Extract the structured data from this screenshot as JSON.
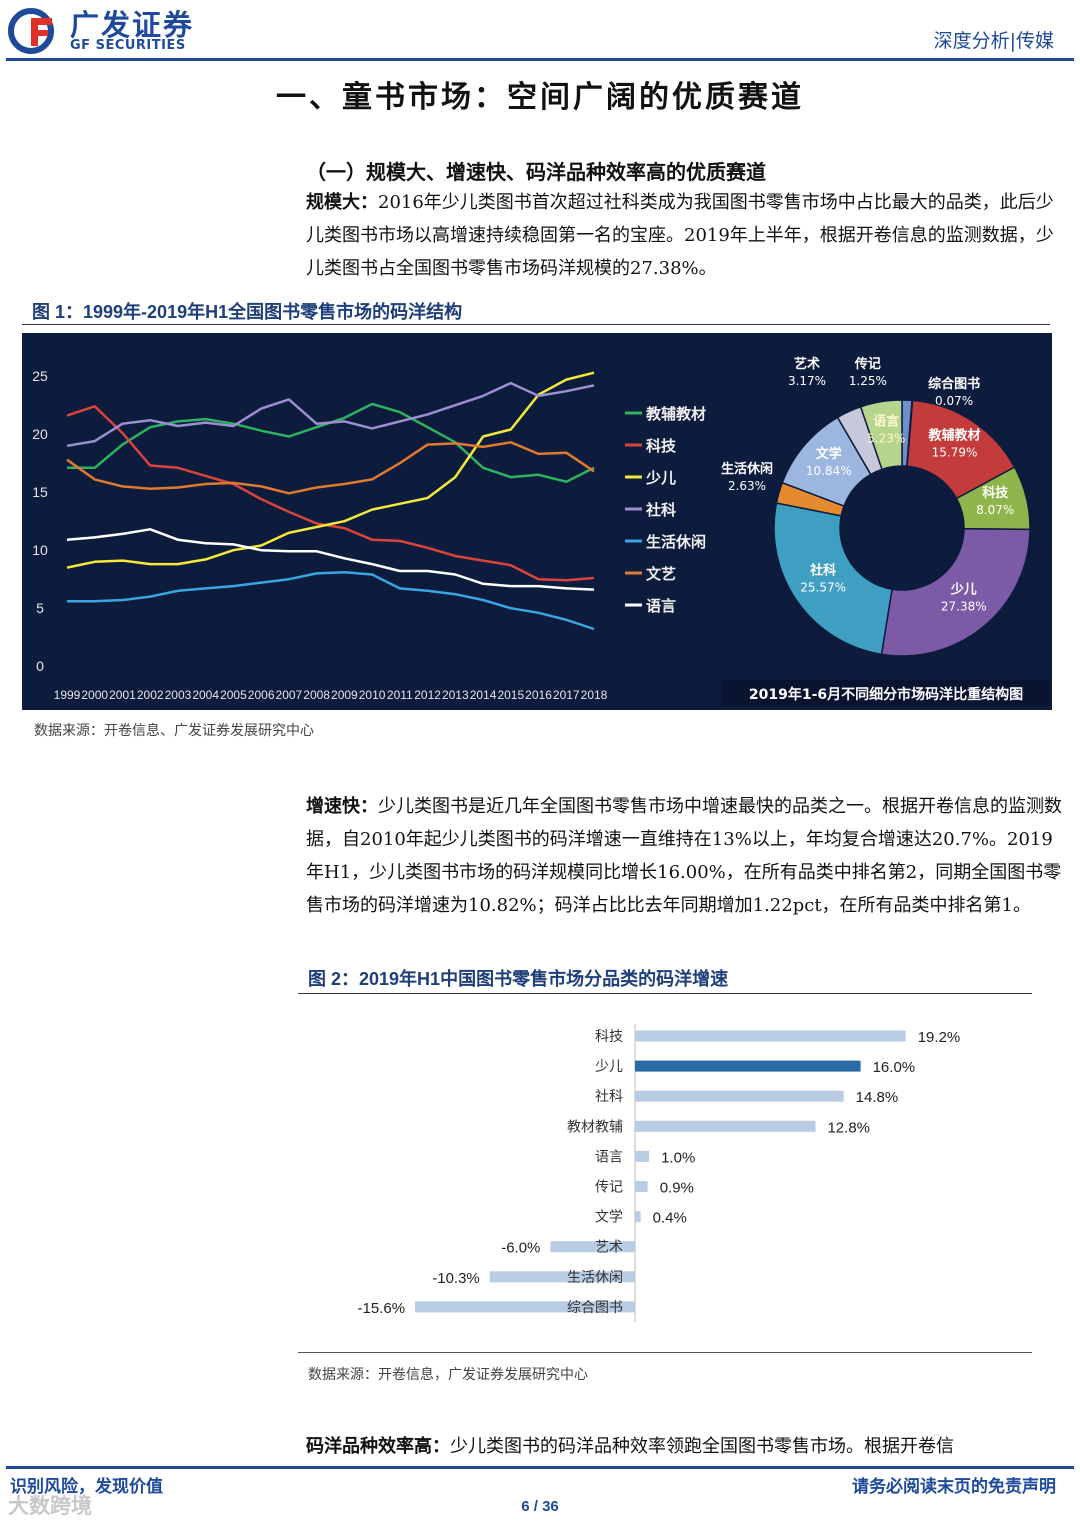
{
  "header": {
    "brand_cn": "广发证券",
    "brand_en": "GF SECURITIES",
    "tag": "深度分析|传媒",
    "brand_color": "#1f4a9c",
    "logo_accent": "#e0302a"
  },
  "section_title": "一、童书市场：空间广阔的优质赛道",
  "sub_title": "（一）规模大、增速快、码洋品种效率高的优质赛道",
  "para1": {
    "lead": "规模大：",
    "text": "2016年少儿类图书首次超过社科类成为我国图书零售市场中占比最大的品类，此后少儿类图书市场以高增速持续稳固第一名的宝座。2019年上半年，根据开卷信息的监测数据，少儿类图书占全国图书零售市场码洋规模的27.38%。"
  },
  "fig1": {
    "title": "图 1：1999年-2019年H1全国图书零售市场的码洋结构",
    "source": "数据来源：开卷信息、广发证券发展研究中心"
  },
  "para2": {
    "lead": "增速快：",
    "text": "少儿类图书是近几年全国图书零售市场中增速最快的品类之一。根据开卷信息的监测数据，自2010年起少儿类图书的码洋增速一直维持在13%以上，年均复合增速达20.7%。2019年H1，少儿类图书市场的码洋规模同比增长16.00%，在所有品类中排名第2，同期全国图书零售市场的码洋增速为10.82%；码洋占比比去年同期增加1.22pct，在所有品类中排名第1。"
  },
  "fig2": {
    "title": "图 2：2019年H1中国图书零售市场分品类的码洋增速",
    "source": "数据来源：开卷信息，广发证券发展研究中心"
  },
  "para3": {
    "lead": "码洋品种效率高：",
    "text": "少儿类图书的码洋品种效率领跑全国图书零售市场。根据开卷信"
  },
  "footer": {
    "left": "识别风险，发现价值",
    "right": "请务必阅读末页的免责声明",
    "page": "6 / 36",
    "watermark": "大数跨境"
  },
  "chart_data": [
    {
      "type": "line",
      "x": [
        1999,
        2000,
        2001,
        2002,
        2003,
        2004,
        2005,
        2006,
        2007,
        2008,
        2009,
        2010,
        2011,
        2012,
        2013,
        2014,
        2015,
        2016,
        2017,
        2018
      ],
      "ylim": [
        0,
        25
      ],
      "yticks": [
        0,
        5,
        10,
        15,
        20,
        25
      ],
      "grid": false,
      "legend": "right",
      "series": [
        {
          "name": "教辅教材",
          "color": "#2db35f",
          "values": [
            17,
            17,
            19,
            20.5,
            21,
            21.2,
            20.8,
            20.2,
            19.7,
            20.5,
            21.3,
            22.5,
            21.8,
            20.5,
            19.2,
            17,
            16.2,
            16.4,
            15.8,
            17
          ]
        },
        {
          "name": "科技",
          "color": "#d9453d",
          "values": [
            21.5,
            22.3,
            20,
            17.2,
            17,
            16.3,
            15.6,
            14.3,
            13.2,
            12.2,
            11.8,
            10.8,
            10.7,
            10.1,
            9.4,
            9,
            8.6,
            7.4,
            7.3,
            7.5
          ]
        },
        {
          "name": "少儿",
          "color": "#f3ea3c",
          "values": [
            8.4,
            8.9,
            9,
            8.7,
            8.7,
            9.1,
            9.9,
            10.3,
            11.4,
            11.9,
            12.4,
            13.4,
            13.9,
            14.4,
            16.2,
            19.7,
            20.3,
            23.3,
            24.6,
            25.2
          ]
        },
        {
          "name": "社科",
          "color": "#9c8ed1",
          "values": [
            18.9,
            19.3,
            20.8,
            21.1,
            20.6,
            20.9,
            20.6,
            22.1,
            22.9,
            20.8,
            21,
            20.4,
            21,
            21.6,
            22.4,
            23.2,
            24.3,
            23.2,
            23.6,
            24.1
          ]
        },
        {
          "name": "生活休闲",
          "color": "#3aa6e0",
          "values": [
            5.5,
            5.5,
            5.6,
            5.9,
            6.4,
            6.6,
            6.8,
            7.1,
            7.4,
            7.9,
            8,
            7.8,
            6.6,
            6.4,
            6.1,
            5.6,
            4.9,
            4.5,
            3.9,
            3.1
          ]
        },
        {
          "name": "文艺",
          "color": "#e07a2e",
          "values": [
            17.7,
            16,
            15.4,
            15.2,
            15.3,
            15.6,
            15.7,
            15.4,
            14.8,
            15.3,
            15.6,
            16,
            17.4,
            19,
            19.1,
            18.8,
            19.2,
            18.2,
            18.3,
            16.7
          ]
        },
        {
          "name": "语言",
          "color": "#ffffff",
          "values": [
            10.8,
            11,
            11.3,
            11.7,
            10.8,
            10.5,
            10.4,
            9.9,
            9.8,
            9.8,
            9.2,
            8.7,
            8.1,
            8.1,
            7.8,
            7,
            6.8,
            6.8,
            6.6,
            6.5
          ]
        }
      ]
    },
    {
      "type": "pie",
      "title": "2019年1-6月不同细分市场码洋比重结构图",
      "slices": [
        {
          "label": "传记",
          "value": 1.25,
          "display": "1.25%",
          "color": "#6f8fcb"
        },
        {
          "label": "综合图书",
          "value": 0.07,
          "display": "0.07%",
          "color": "#8b2f7e"
        },
        {
          "label": "教辅教材",
          "value": 15.79,
          "display": "15.79%",
          "color": "#c33b3b"
        },
        {
          "label": "科技",
          "value": 8.07,
          "display": "8.07%",
          "color": "#8db54b"
        },
        {
          "label": "少儿",
          "value": 27.38,
          "display": "27.38%",
          "color": "#7b5aa6"
        },
        {
          "label": "社科",
          "value": 25.57,
          "display": "25.57%",
          "color": "#3f9fc3"
        },
        {
          "label": "生活休闲",
          "value": 2.63,
          "display": "2.63%",
          "color": "#e58a2e"
        },
        {
          "label": "文学",
          "value": 10.84,
          "display": "10.84%",
          "color": "#9bb7df"
        },
        {
          "label": "艺术",
          "value": 3.17,
          "display": "3.17%",
          "color": "#c8c8dc"
        },
        {
          "label": "语言",
          "value": 5.23,
          "display": "5.23%",
          "color": "#b6d58c"
        }
      ]
    },
    {
      "type": "bar",
      "orientation": "horizontal",
      "categories": [
        "科技",
        "少儿",
        "社科",
        "教材教辅",
        "语言",
        "传记",
        "文学",
        "艺术",
        "生活休闲",
        "综合图书"
      ],
      "values": [
        19.2,
        16.0,
        14.8,
        12.8,
        1.0,
        0.9,
        0.4,
        -6.0,
        -10.3,
        -15.6
      ],
      "labels": [
        "19.2%",
        "16.0%",
        "14.8%",
        "12.8%",
        "1.0%",
        "0.9%",
        "0.4%",
        "-6.0%",
        "-10.3%",
        "-15.6%"
      ],
      "highlight": "少儿",
      "bar_color": "#b8cce4",
      "highlight_color": "#2a6aa5"
    }
  ]
}
